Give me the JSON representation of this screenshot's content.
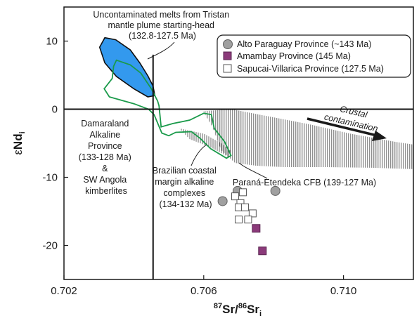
{
  "chart_data": {
    "type": "scatter",
    "xlim": [
      0.702,
      0.712
    ],
    "ylim": [
      -25,
      15
    ],
    "xticks": [
      "0.702",
      "0.706",
      "0.710"
    ],
    "yticks": [
      "10",
      "0",
      "-10",
      "-20"
    ],
    "xtick_values": [
      0.702,
      0.706,
      0.71
    ],
    "ytick_values": [
      10,
      0,
      -10,
      -20
    ],
    "xlabel": {
      "sup1": "87",
      "main1": "Sr/",
      "sup2": "86",
      "main2": "Sr",
      "sub": "i"
    },
    "ylabel": {
      "prefix": "ε",
      "main": "Nd",
      "sub": "i"
    },
    "legend_position": "top-right",
    "series": [
      {
        "name": "Alto Paraguay Province (~143 Ma)",
        "marker": "circle",
        "color": "#a0a0a0",
        "points": [
          [
            0.70654,
            -13.5
          ],
          [
            0.70697,
            -12.0
          ],
          [
            0.70805,
            -12.0
          ]
        ]
      },
      {
        "name": "Amambay Province (145 Ma)",
        "marker": "square",
        "color": "#8b3a7a",
        "points": [
          [
            0.7075,
            -17.5
          ],
          [
            0.70768,
            -20.8
          ]
        ]
      },
      {
        "name": "Sapucai-Villarica Province (127.5 Ma)",
        "marker": "open-square",
        "color": "#ffffff",
        "points": [
          [
            0.7069,
            -12.8
          ],
          [
            0.70712,
            -12.2
          ],
          [
            0.70705,
            -13.8
          ],
          [
            0.707,
            -14.4
          ],
          [
            0.70718,
            -14.4
          ],
          [
            0.7074,
            -15.3
          ],
          [
            0.707,
            -16.2
          ],
          [
            0.70727,
            -16.2
          ]
        ]
      }
    ],
    "fields": [
      {
        "fill": "#3399ee",
        "points": [
          [
            0.70302,
            9.1
          ],
          [
            0.70317,
            10.5
          ],
          [
            0.70348,
            10.2
          ],
          [
            0.7039,
            8.7
          ],
          [
            0.70417,
            6.8
          ],
          [
            0.7044,
            4.9
          ],
          [
            0.70455,
            3.4
          ],
          [
            0.7046,
            2.0
          ],
          [
            0.7044,
            1.8
          ],
          [
            0.704,
            3.0
          ],
          [
            0.7035,
            4.8
          ],
          [
            0.70317,
            6.8
          ]
        ]
      },
      {
        "outline": "#1a9a4a",
        "points": [
          [
            0.7035,
            7.2
          ],
          [
            0.7039,
            6.5
          ],
          [
            0.7042,
            5.3
          ],
          [
            0.7045,
            3.0
          ],
          [
            0.70468,
            1.2
          ],
          [
            0.70472,
            0.5
          ],
          [
            0.70478,
            -2.6
          ],
          [
            0.70512,
            -2.1
          ],
          [
            0.7056,
            -1.6
          ],
          [
            0.706,
            -0.6
          ],
          [
            0.70622,
            -0.8
          ],
          [
            0.7063,
            -2.8
          ],
          [
            0.7066,
            -4.8
          ],
          [
            0.70678,
            -6.8
          ],
          [
            0.70665,
            -7.2
          ],
          [
            0.7062,
            -5.8
          ],
          [
            0.7059,
            -4.3
          ],
          [
            0.70565,
            -3.3
          ],
          [
            0.7052,
            -3.4
          ],
          [
            0.705,
            -3.9
          ],
          [
            0.7048,
            -3.5
          ],
          [
            0.70458,
            -0.8
          ],
          [
            0.70442,
            0.0
          ],
          [
            0.704,
            0.8
          ],
          [
            0.7033,
            1.8
          ],
          [
            0.70315,
            3.0
          ],
          [
            0.70338,
            4.5
          ],
          [
            0.70342,
            6.3
          ]
        ]
      }
    ],
    "hatched_fields": [
      {
        "points": [
          [
            0.7053,
            -2.8
          ],
          [
            0.706,
            -3.6
          ],
          [
            0.7065,
            -5.0
          ],
          [
            0.7068,
            -6.2
          ],
          [
            0.7067,
            -7.0
          ],
          [
            0.7062,
            -5.6
          ],
          [
            0.7056,
            -4.4
          ]
        ]
      },
      {
        "points": [
          [
            0.70598,
            -0.3
          ],
          [
            0.7068,
            0.0
          ],
          [
            0.7078,
            -1.0
          ],
          [
            0.709,
            -2.2
          ],
          [
            0.7102,
            -3.6
          ],
          [
            0.7115,
            -4.8
          ],
          [
            0.712,
            -5.2
          ],
          [
            0.712,
            -8.8
          ],
          [
            0.7108,
            -8.6
          ],
          [
            0.7095,
            -8.5
          ],
          [
            0.7083,
            -8.5
          ],
          [
            0.7075,
            -8.3
          ],
          [
            0.7069,
            -7.9
          ],
          [
            0.7065,
            -6.0
          ],
          [
            0.70625,
            -2.6
          ]
        ]
      }
    ],
    "reference_lines": {
      "x": 0.70455,
      "y": 0,
      "vertical_top": 8.0
    },
    "annotations": [
      {
        "lines": [
          "Uncontaminated melts from Tristan",
          "mantle plume starting-head",
          "(132.8-127.5 Ma)"
        ]
      },
      {
        "lines": [
          "Damaraland",
          "Alkaline",
          "Province",
          "(133-128 Ma)",
          "&",
          "SW Angola",
          "kimberlites"
        ]
      },
      {
        "lines": [
          "Brazilian coastal",
          "margin alkaline",
          "complexes",
          "(134-132 Ma)"
        ]
      },
      {
        "lines": [
          "Paraná-Etendeka CFB (139-127 Ma)"
        ]
      },
      {
        "lines": [
          "Crustal",
          "contamination"
        ]
      }
    ]
  }
}
